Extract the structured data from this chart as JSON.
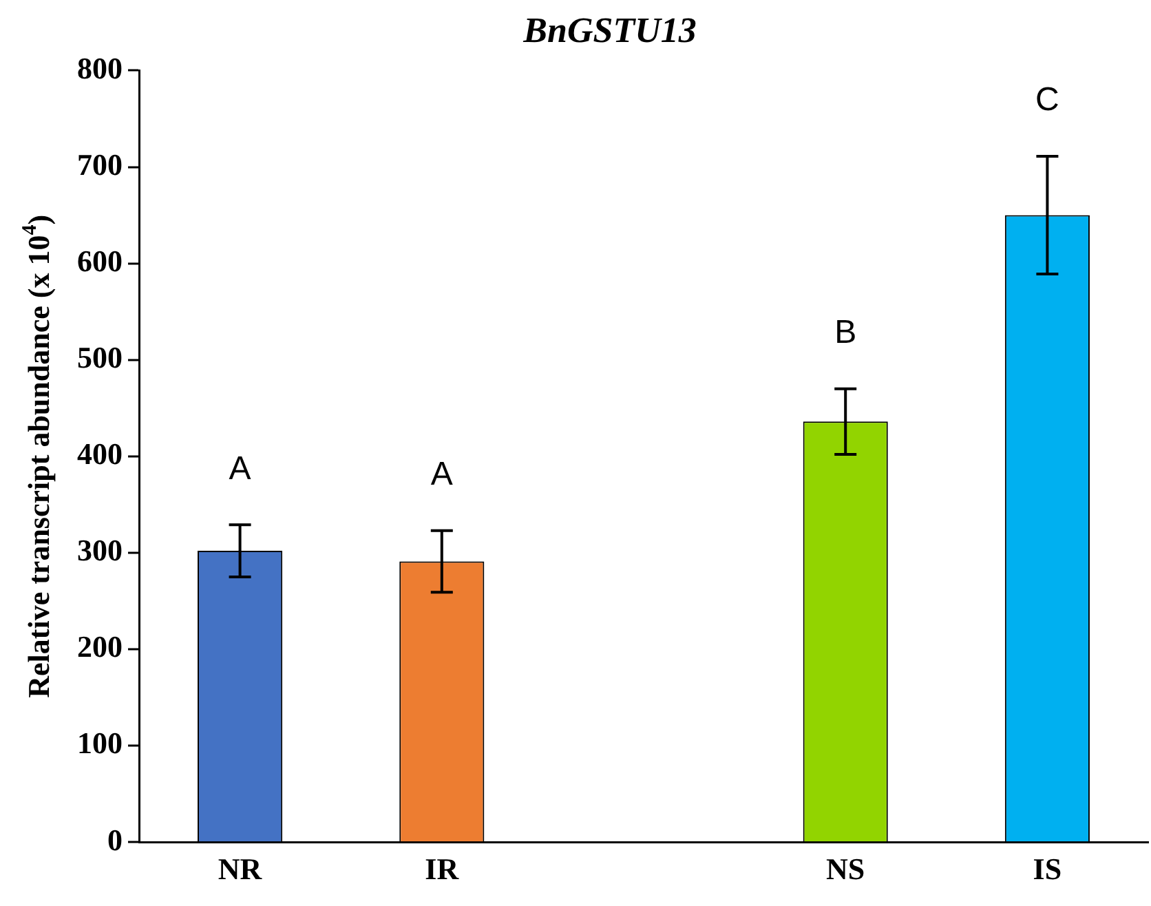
{
  "chart_data": {
    "type": "bar",
    "title": "BnGSTU13",
    "ylabel": "Relative transcript abundance (x 10$^{4}$)",
    "categories": [
      "NR",
      "IR",
      null,
      "NS",
      "IS"
    ],
    "values": [
      302,
      291,
      null,
      436,
      650
    ],
    "errors": [
      27,
      32,
      null,
      34,
      61
    ],
    "colors": [
      "#4472c4",
      "#ed7d31",
      null,
      "#92d400",
      "#00b0f0"
    ],
    "ylim": [
      0,
      800
    ],
    "yticks": [
      0,
      100,
      200,
      300,
      400,
      500,
      600,
      700,
      800
    ],
    "grid": false,
    "legend": false,
    "annotations": [
      "A",
      "A",
      "B",
      "C"
    ]
  }
}
